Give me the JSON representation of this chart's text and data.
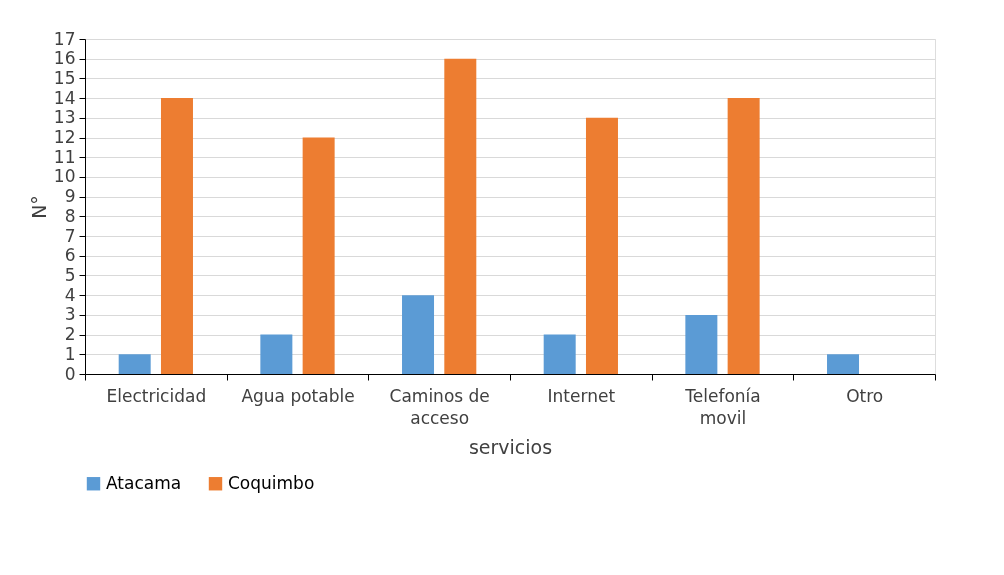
{
  "chart_data": {
    "type": "bar",
    "xlabel": "servicios",
    "ylabel": "N°",
    "categories": [
      "Electricidad",
      "Agua potable",
      "Caminos de acceso",
      "Internet",
      "Telefonía movil",
      "Otro"
    ],
    "series": [
      {
        "name": "Atacama",
        "color": "#5b9bd5",
        "values": [
          1,
          2,
          4,
          2,
          3,
          1
        ]
      },
      {
        "name": "Coquimbo",
        "color": "#ed7d31",
        "values": [
          14,
          12,
          16,
          13,
          14,
          0
        ]
      }
    ],
    "ylim": [
      0,
      17
    ],
    "yticks": [
      0,
      1,
      2,
      3,
      4,
      5,
      6,
      7,
      8,
      9,
      10,
      11,
      12,
      13,
      14,
      15,
      16,
      17
    ],
    "grid": "y",
    "legend": "bottom"
  }
}
